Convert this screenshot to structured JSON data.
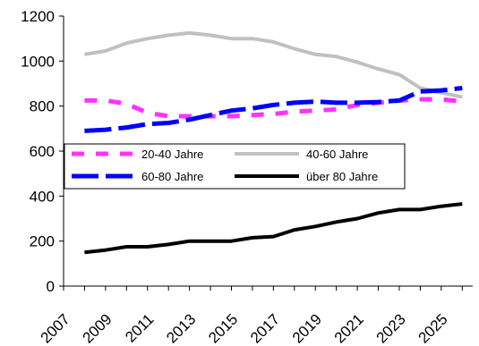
{
  "chart_data": {
    "type": "line",
    "title": "",
    "xlabel": "",
    "ylabel": "",
    "x": [
      2008,
      2009,
      2010,
      2011,
      2012,
      2013,
      2014,
      2015,
      2016,
      2017,
      2018,
      2019,
      2020,
      2021,
      2022,
      2023,
      2024,
      2025,
      2026
    ],
    "x_tick_labels": [
      "2007",
      "2009",
      "2011",
      "2013",
      "2015",
      "2017",
      "2019",
      "2021",
      "2023",
      "2025"
    ],
    "y_tick_labels": [
      "0",
      "200",
      "400",
      "600",
      "800",
      "1000",
      "1200"
    ],
    "ylim": [
      0,
      1200
    ],
    "grid": false,
    "legend_position": "center-left",
    "series": [
      {
        "name": "20-40 Jahre",
        "color": "#ff33ff",
        "style": "dashed",
        "values": [
          825,
          825,
          810,
          770,
          755,
          755,
          755,
          755,
          760,
          765,
          775,
          780,
          785,
          805,
          815,
          825,
          830,
          830,
          820
        ]
      },
      {
        "name": "40-60 Jahre",
        "color": "#c0c0c0",
        "style": "solid",
        "values": [
          1030,
          1045,
          1080,
          1100,
          1115,
          1125,
          1115,
          1100,
          1100,
          1085,
          1055,
          1030,
          1020,
          995,
          965,
          940,
          880,
          860,
          840
        ]
      },
      {
        "name": "60-80 Jahre",
        "color": "#0000ff",
        "style": "dashed",
        "values": [
          690,
          695,
          705,
          720,
          725,
          740,
          760,
          780,
          790,
          805,
          815,
          820,
          815,
          815,
          818,
          825,
          865,
          870,
          880
        ]
      },
      {
        "name": "über 80 Jahre",
        "color": "#000000",
        "style": "solid",
        "values": [
          150,
          160,
          175,
          175,
          185,
          200,
          200,
          200,
          215,
          220,
          250,
          265,
          285,
          300,
          325,
          340,
          340,
          355,
          365
        ]
      }
    ]
  }
}
